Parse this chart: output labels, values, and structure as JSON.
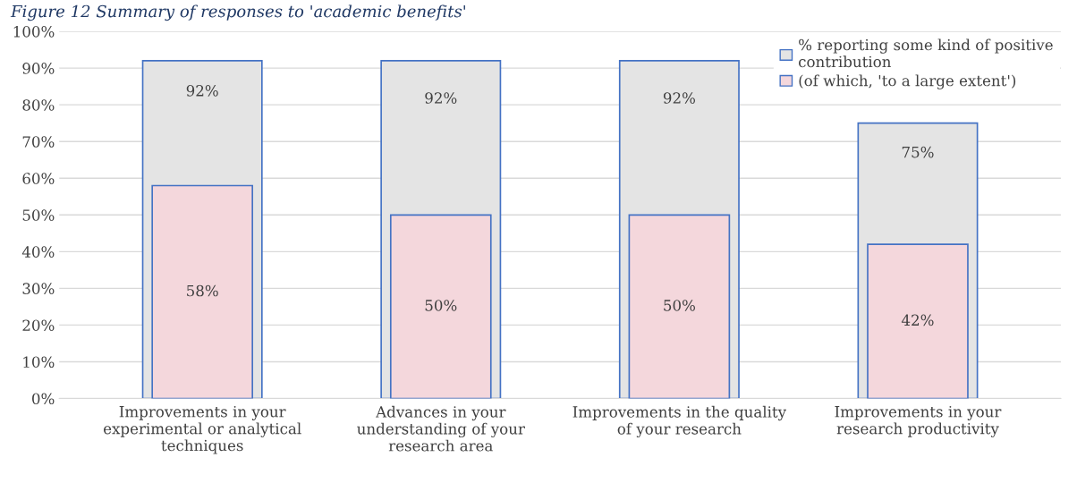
{
  "chart_data": {
    "type": "bar",
    "title": "Figure 12 Summary of responses to 'academic benefits'",
    "categories": [
      "Improvements in your\nexperimental or analytical\ntechniques",
      "Advances in your\nunderstanding of your\nresearch area",
      "Improvements in the quality\nof your research",
      "Improvements in your\nresearch productivity"
    ],
    "series": [
      {
        "name": "% reporting some kind of positive\ncontribution",
        "color": "#e4e4e4",
        "values": [
          92,
          92,
          92,
          75
        ],
        "value_labels": [
          "92%",
          "92%",
          "92%",
          "75%"
        ]
      },
      {
        "name": "(of which, 'to a large extent')",
        "color": "#f4d7dc",
        "values": [
          58,
          50,
          50,
          42
        ],
        "value_labels": [
          "58%",
          "50%",
          "50%",
          "42%"
        ]
      }
    ],
    "ylim": [
      0,
      100
    ],
    "yticks": [
      {
        "value": 0,
        "label": "0%"
      },
      {
        "value": 10,
        "label": "10%"
      },
      {
        "value": 20,
        "label": "20%"
      },
      {
        "value": 30,
        "label": "30%"
      },
      {
        "value": 40,
        "label": "40%"
      },
      {
        "value": 50,
        "label": "50%"
      },
      {
        "value": 60,
        "label": "60%"
      },
      {
        "value": 70,
        "label": "70%"
      },
      {
        "value": 80,
        "label": "80%"
      },
      {
        "value": 90,
        "label": "90%"
      },
      {
        "value": 100,
        "label": "100%"
      }
    ],
    "grid": "y",
    "legend": "top right"
  }
}
